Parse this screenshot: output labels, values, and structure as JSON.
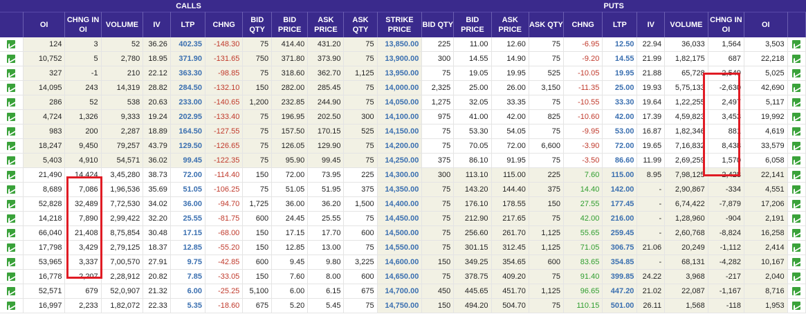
{
  "header": {
    "calls": "CALLS",
    "puts": "PUTS"
  },
  "columns": [
    "",
    "OI",
    "CHNG IN OI",
    "VOLUME",
    "IV",
    "LTP",
    "CHNG",
    "BID QTY",
    "BID PRICE",
    "ASK PRICE",
    "ASK QTY",
    "STRIKE PRICE",
    "BID QTY",
    "BID PRICE",
    "ASK PRICE",
    "ASK QTY",
    "CHNG",
    "LTP",
    "IV",
    "VOLUME",
    "CHNG IN OI",
    "OI",
    ""
  ],
  "icons": {
    "chart": "chart-icon"
  },
  "rows": [
    {
      "c": [
        "124",
        "3",
        "52",
        "36.26",
        "402.35",
        "-148.30",
        "75",
        "414.40",
        "431.20",
        "75"
      ],
      "s": "13,850.00",
      "p": [
        "225",
        "11.00",
        "12.60",
        "75",
        "-6.95",
        "12.50",
        "22.94",
        "36,033",
        "1,564",
        "3,503"
      ]
    },
    {
      "c": [
        "10,752",
        "5",
        "2,780",
        "18.95",
        "371.90",
        "-131.65",
        "750",
        "371.80",
        "373.90",
        "75"
      ],
      "s": "13,900.00",
      "p": [
        "300",
        "14.55",
        "14.90",
        "75",
        "-9.20",
        "14.55",
        "21.99",
        "1,82,175",
        "687",
        "22,218"
      ]
    },
    {
      "c": [
        "327",
        "-1",
        "210",
        "22.12",
        "363.30",
        "-98.85",
        "75",
        "318.60",
        "362.70",
        "1,125"
      ],
      "s": "13,950.00",
      "p": [
        "75",
        "19.05",
        "19.95",
        "525",
        "-10.05",
        "19.95",
        "21.88",
        "65,728",
        "2,549",
        "5,025"
      ]
    },
    {
      "c": [
        "14,095",
        "243",
        "14,319",
        "28.82",
        "284.50",
        "-132.10",
        "150",
        "282.00",
        "285.45",
        "75"
      ],
      "s": "14,000.00",
      "p": [
        "2,325",
        "25.00",
        "26.00",
        "3,150",
        "-11.35",
        "25.00",
        "19.93",
        "5,75,133",
        "-2,630",
        "42,690"
      ]
    },
    {
      "c": [
        "286",
        "52",
        "538",
        "20.63",
        "233.00",
        "-140.65",
        "1,200",
        "232.85",
        "244.90",
        "75"
      ],
      "s": "14,050.00",
      "p": [
        "1,275",
        "32.05",
        "33.35",
        "75",
        "-10.55",
        "33.30",
        "19.64",
        "1,22,255",
        "2,497",
        "5,117"
      ]
    },
    {
      "c": [
        "4,724",
        "1,326",
        "9,333",
        "19.24",
        "202.95",
        "-133.40",
        "75",
        "196.95",
        "202.50",
        "300"
      ],
      "s": "14,100.00",
      "p": [
        "975",
        "41.00",
        "42.00",
        "825",
        "-10.60",
        "42.00",
        "17.39",
        "4,59,823",
        "3,453",
        "19,992"
      ]
    },
    {
      "c": [
        "983",
        "200",
        "2,287",
        "18.89",
        "164.50",
        "-127.55",
        "75",
        "157.50",
        "170.15",
        "525"
      ],
      "s": "14,150.00",
      "p": [
        "75",
        "53.30",
        "54.05",
        "75",
        "-9.95",
        "53.00",
        "16.87",
        "1,82,346",
        "881",
        "4,619"
      ]
    },
    {
      "c": [
        "18,247",
        "9,450",
        "79,257",
        "43.79",
        "129.50",
        "-126.65",
        "75",
        "126.05",
        "129.90",
        "75"
      ],
      "s": "14,200.00",
      "p": [
        "75",
        "70.05",
        "72.00",
        "6,600",
        "-3.90",
        "72.00",
        "19.65",
        "7,16,832",
        "8,438",
        "33,579"
      ]
    },
    {
      "c": [
        "5,403",
        "4,910",
        "54,571",
        "36.02",
        "99.45",
        "-122.35",
        "75",
        "95.90",
        "99.45",
        "75"
      ],
      "s": "14,250.00",
      "p": [
        "375",
        "86.10",
        "91.95",
        "75",
        "-3.50",
        "86.60",
        "11.99",
        "2,69,259",
        "1,570",
        "6,058"
      ]
    },
    {
      "c": [
        "21,490",
        "14,424",
        "3,45,280",
        "38.73",
        "72.00",
        "-114.40",
        "150",
        "72.00",
        "73.95",
        "225"
      ],
      "s": "14,300.00",
      "p": [
        "300",
        "113.10",
        "115.00",
        "225",
        "7.60",
        "115.00",
        "8.95",
        "7,98,125",
        "2,428",
        "22,141"
      ]
    },
    {
      "c": [
        "8,689",
        "7,086",
        "1,96,536",
        "35.69",
        "51.05",
        "-106.25",
        "75",
        "51.05",
        "51.95",
        "375"
      ],
      "s": "14,350.00",
      "p": [
        "75",
        "143.20",
        "144.40",
        "375",
        "14.40",
        "142.00",
        "-",
        "2,90,867",
        "-334",
        "4,551"
      ]
    },
    {
      "c": [
        "52,828",
        "32,489",
        "7,72,530",
        "34.02",
        "36.00",
        "-94.70",
        "1,725",
        "36.00",
        "36.20",
        "1,500"
      ],
      "s": "14,400.00",
      "p": [
        "75",
        "176.10",
        "178.55",
        "150",
        "27.55",
        "177.45",
        "-",
        "6,74,422",
        "-7,879",
        "17,206"
      ]
    },
    {
      "c": [
        "14,218",
        "7,890",
        "2,99,422",
        "32.20",
        "25.55",
        "-81.75",
        "600",
        "24.45",
        "25.55",
        "75"
      ],
      "s": "14,450.00",
      "p": [
        "75",
        "212.90",
        "217.65",
        "75",
        "42.00",
        "216.00",
        "-",
        "1,28,960",
        "-904",
        "2,191"
      ]
    },
    {
      "c": [
        "66,040",
        "21,408",
        "8,75,854",
        "30.48",
        "17.15",
        "-68.00",
        "150",
        "17.15",
        "17.70",
        "600"
      ],
      "s": "14,500.00",
      "p": [
        "75",
        "256.60",
        "261.70",
        "1,125",
        "55.65",
        "259.45",
        "-",
        "2,60,768",
        "-8,824",
        "16,258"
      ]
    },
    {
      "c": [
        "17,798",
        "3,429",
        "2,79,125",
        "18.37",
        "12.85",
        "-55.20",
        "150",
        "12.85",
        "13.00",
        "75"
      ],
      "s": "14,550.00",
      "p": [
        "75",
        "301.15",
        "312.45",
        "1,125",
        "71.05",
        "306.75",
        "21.06",
        "20,249",
        "-1,112",
        "2,414"
      ]
    },
    {
      "c": [
        "53,965",
        "3,337",
        "7,00,570",
        "27.91",
        "9.75",
        "-42.85",
        "600",
        "9.45",
        "9.80",
        "3,225"
      ],
      "s": "14,600.00",
      "p": [
        "150",
        "349.25",
        "354.65",
        "600",
        "83.65",
        "354.85",
        "-",
        "68,131",
        "-4,282",
        "10,167"
      ]
    },
    {
      "c": [
        "16,778",
        "2,207",
        "2,28,912",
        "20.82",
        "7.85",
        "-33.05",
        "150",
        "7.60",
        "8.00",
        "600"
      ],
      "s": "14,650.00",
      "p": [
        "75",
        "378.75",
        "409.20",
        "75",
        "91.40",
        "399.85",
        "24.22",
        "3,968",
        "-217",
        "2,040"
      ]
    },
    {
      "c": [
        "52,571",
        "679",
        "52,0,907",
        "21.32",
        "6.00",
        "-25.25",
        "5,100",
        "6.00",
        "6.15",
        "675"
      ],
      "s": "14,700.00",
      "p": [
        "450",
        "445.65",
        "451.70",
        "1,125",
        "96.65",
        "447.20",
        "21.02",
        "22,087",
        "-1,167",
        "8,716"
      ]
    },
    {
      "c": [
        "16,997",
        "2,233",
        "1,82,072",
        "22.33",
        "5.35",
        "-18.60",
        "675",
        "5.20",
        "5.45",
        "75"
      ],
      "s": "14,750.00",
      "p": [
        "150",
        "494.20",
        "504.70",
        "75",
        "110.15",
        "501.00",
        "26.11",
        "1,568",
        "-118",
        "1,953"
      ]
    }
  ]
}
